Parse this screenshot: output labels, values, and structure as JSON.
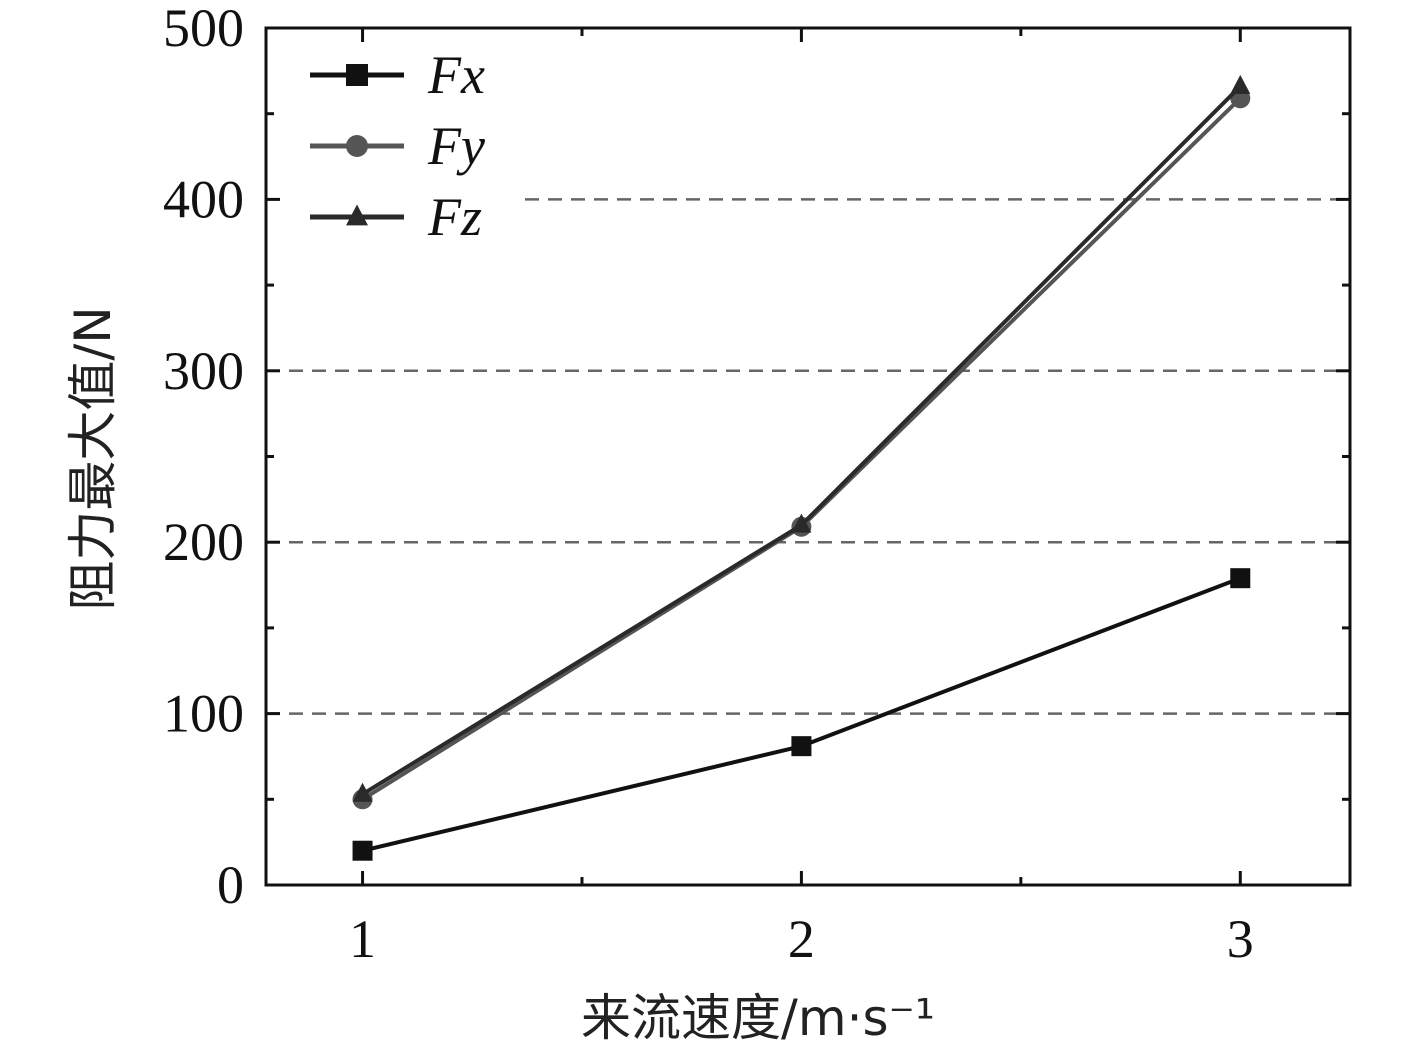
{
  "chart_data": {
    "type": "line",
    "xlabel": "来流速度/m·s⁻¹",
    "ylabel": "阻力最大值/N",
    "x": [
      1,
      2,
      3
    ],
    "xlim": [
      0.78,
      3.25
    ],
    "ylim": [
      0,
      500
    ],
    "xticks": [
      1,
      2,
      3
    ],
    "yticks": [
      0,
      100,
      200,
      300,
      400,
      500
    ],
    "grid": "horizontal dashed at 100, 200, 300, 400",
    "legend": "top-left",
    "series": [
      {
        "name": "Fx",
        "marker": "square",
        "color": "#111111",
        "values": [
          20,
          81,
          179
        ]
      },
      {
        "name": "Fy",
        "marker": "circle",
        "color": "#555555",
        "values": [
          50,
          209,
          459
        ]
      },
      {
        "name": "Fz",
        "marker": "triangle",
        "color": "#2a2a2a",
        "values": [
          53,
          210,
          466
        ]
      }
    ]
  }
}
